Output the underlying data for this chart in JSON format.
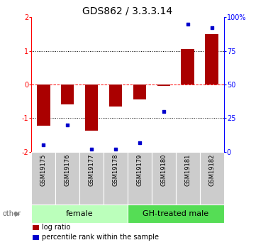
{
  "title": "GDS862 / 3.3.3.14",
  "samples": [
    "GSM19175",
    "GSM19176",
    "GSM19177",
    "GSM19178",
    "GSM19179",
    "GSM19180",
    "GSM19181",
    "GSM19182"
  ],
  "log_ratios": [
    -1.22,
    -0.6,
    -1.38,
    -0.65,
    -0.45,
    -0.05,
    1.05,
    1.5
  ],
  "percentile_ranks": [
    5,
    20,
    2,
    2,
    7,
    30,
    95,
    92
  ],
  "bar_color": "#aa0000",
  "dot_color": "#0000cc",
  "ylim": [
    -2,
    2
  ],
  "y2lim": [
    0,
    100
  ],
  "yticks": [
    -2,
    -1,
    0,
    1,
    2
  ],
  "y2ticks": [
    0,
    25,
    50,
    75,
    100
  ],
  "groups": [
    {
      "label": "female",
      "count": 4,
      "color": "#bbffbb"
    },
    {
      "label": "GH-treated male",
      "count": 4,
      "color": "#55dd55"
    }
  ],
  "other_label": "other",
  "legend_items": [
    {
      "label": "log ratio",
      "color": "#aa0000"
    },
    {
      "label": "percentile rank within the sample",
      "color": "#0000cc"
    }
  ],
  "bar_width": 0.55,
  "title_fontsize": 10,
  "tick_fontsize": 7,
  "sample_fontsize": 6,
  "group_label_fontsize": 8,
  "legend_fontsize": 7,
  "background_color": "#ffffff"
}
